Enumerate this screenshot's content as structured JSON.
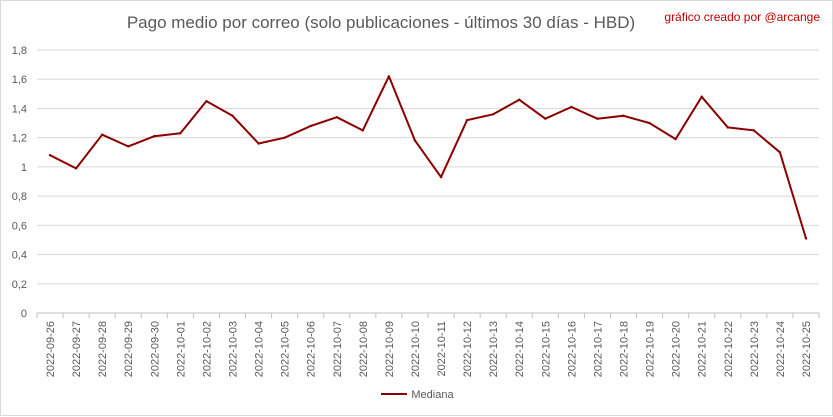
{
  "chart_data": {
    "type": "line",
    "title": "Pago medio por correo (solo publicaciones - últimos 30 días - HBD)",
    "credit": "gráfico creado por @arcange",
    "x": [
      "2022-09-26",
      "2022-09-27",
      "2022-09-28",
      "2022-09-29",
      "2022-09-30",
      "2022-10-01",
      "2022-10-02",
      "2022-10-03",
      "2022-10-04",
      "2022-10-05",
      "2022-10-06",
      "2022-10-07",
      "2022-10-08",
      "2022-10-09",
      "2022-10-10",
      "2022-10-11",
      "2022-10-12",
      "2022-10-13",
      "2022-10-14",
      "2022-10-15",
      "2022-10-16",
      "2022-10-17",
      "2022-10-18",
      "2022-10-19",
      "2022-10-20",
      "2022-10-21",
      "2022-10-22",
      "2022-10-23",
      "2022-10-24",
      "2022-10-25"
    ],
    "series": [
      {
        "name": "Mediana",
        "color": "#8b0000",
        "values": [
          1.08,
          0.99,
          1.22,
          1.14,
          1.21,
          1.23,
          1.45,
          1.35,
          1.16,
          1.2,
          1.28,
          1.34,
          1.25,
          1.62,
          1.18,
          0.93,
          1.32,
          1.36,
          1.46,
          1.33,
          1.41,
          1.33,
          1.35,
          1.3,
          1.19,
          1.48,
          1.27,
          1.25,
          1.1,
          0.51
        ]
      }
    ],
    "ylim": [
      0,
      1.8
    ],
    "yticks": [
      "0",
      "0,2",
      "0,4",
      "0,6",
      "0,8",
      "1",
      "1,2",
      "1,4",
      "1,6",
      "1,8"
    ],
    "grid": true,
    "legend_position": "bottom"
  }
}
